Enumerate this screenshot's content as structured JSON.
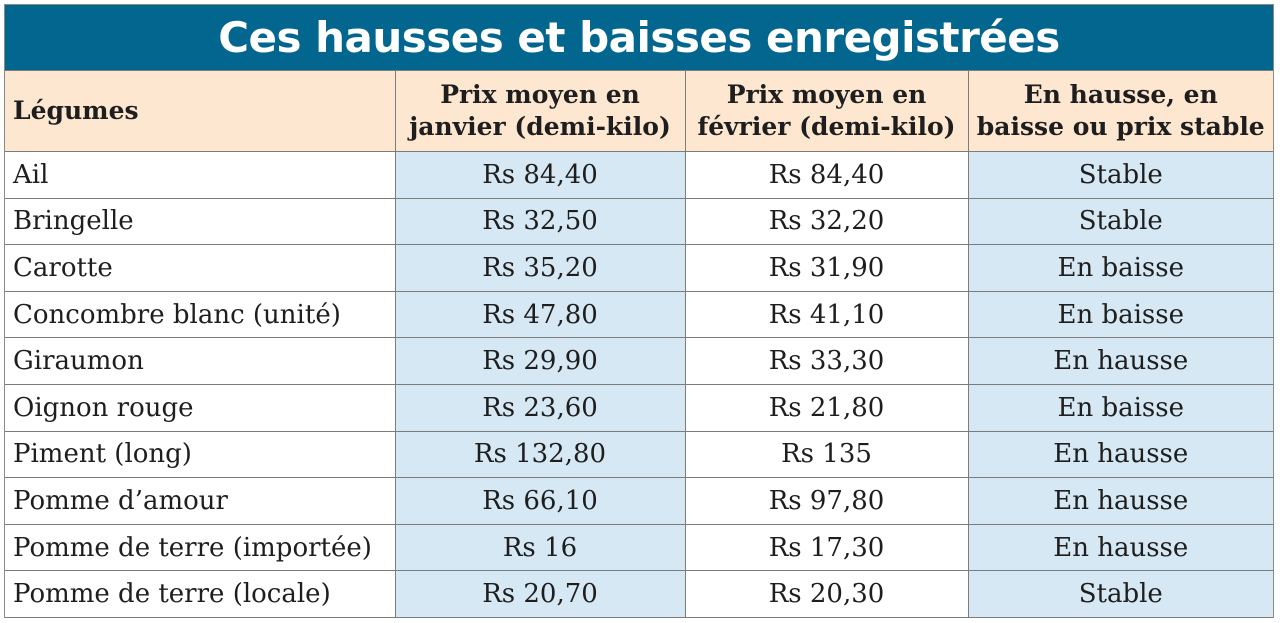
{
  "title": "Ces hausses et baisses enregistrées",
  "columns": [
    "Légumes",
    "Prix moyen en janvier (demi-kilo)",
    "Prix moyen en février (demi-kilo)",
    "En hausse, en baisse ou prix stable"
  ],
  "rows": [
    [
      "Ail",
      "Rs 84,40",
      "Rs 84,40",
      "Stable"
    ],
    [
      "Bringelle",
      "Rs 32,50",
      "Rs 32,20",
      "Stable"
    ],
    [
      "Carotte",
      "Rs 35,20",
      "Rs 31,90",
      "En baisse"
    ],
    [
      "Concombre blanc (unité)",
      "Rs 47,80",
      "Rs 41,10",
      "En baisse"
    ],
    [
      "Giraumon",
      "Rs 29,90",
      "Rs 33,30",
      "En hausse"
    ],
    [
      "Oignon rouge",
      "Rs 23,60",
      "Rs 21,80",
      "En baisse"
    ],
    [
      "Piment (long)",
      "Rs 132,80",
      "Rs 135",
      "En hausse"
    ],
    [
      "Pomme d’amour",
      "Rs 66,10",
      "Rs 97,80",
      "En hausse"
    ],
    [
      "Pomme de terre (importée)",
      "Rs 16",
      "Rs 17,30",
      "En hausse"
    ],
    [
      "Pomme de terre (locale)",
      "Rs 20,70",
      "Rs 20,30",
      "Stable"
    ]
  ],
  "colors": {
    "title_bg": "#02668e",
    "header_bg": "#fde7d1",
    "shaded_column": "#d6e8f3"
  }
}
